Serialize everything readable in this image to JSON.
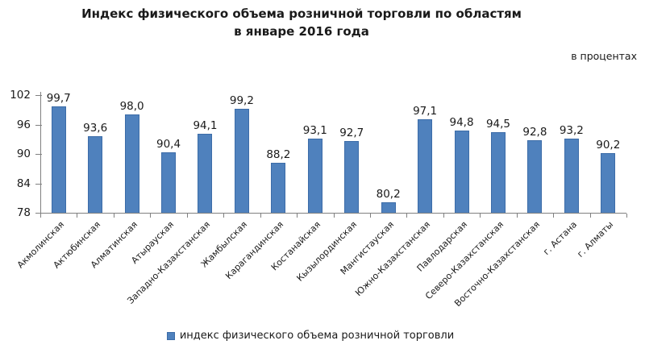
{
  "title": {
    "line1": "Индекс физического объема розничной торговли по областям",
    "line2": "в январе 2016 года"
  },
  "units_label": "в процентах",
  "legend": {
    "label": "индекс физического объема розничной торговли",
    "marker_color": "#4f81bd"
  },
  "colors": {
    "bar_fill": "#4f81bd",
    "bar_border": "#3c6ca8",
    "axis": "#808080",
    "text": "#1a1a1a"
  },
  "chart_data": {
    "type": "bar",
    "title": "Индекс физического объема розничной торговли по областям в январе 2016 года",
    "ylabel": "в процентах",
    "ylim": [
      78,
      102
    ],
    "yticks": [
      78,
      84,
      90,
      96,
      102
    ],
    "grid": false,
    "legend_position": "bottom",
    "categories": [
      "Акмолинская",
      "Актюбинская",
      "Алматинская",
      "Атырауская",
      "Западно-Казахстанская",
      "Жамбылская",
      "Карагандинская",
      "Костанайская",
      "Кызылординская",
      "Мангистауская",
      "Южно-Казахстанская",
      "Павлодарская",
      "Северо-Казахстанская",
      "Восточно-Казахстанская",
      "г. Астана",
      "г. Алматы"
    ],
    "values": [
      99.7,
      93.6,
      98.0,
      90.4,
      94.1,
      99.2,
      88.2,
      93.1,
      92.7,
      80.2,
      97.1,
      94.8,
      94.5,
      92.8,
      93.2,
      90.2
    ],
    "value_labels": [
      "99,7",
      "93,6",
      "98,0",
      "90,4",
      "94,1",
      "99,2",
      "88,2",
      "93,1",
      "92,7",
      "80,2",
      "97,1",
      "94,8",
      "94,5",
      "92,8",
      "93,2",
      "90,2"
    ]
  }
}
